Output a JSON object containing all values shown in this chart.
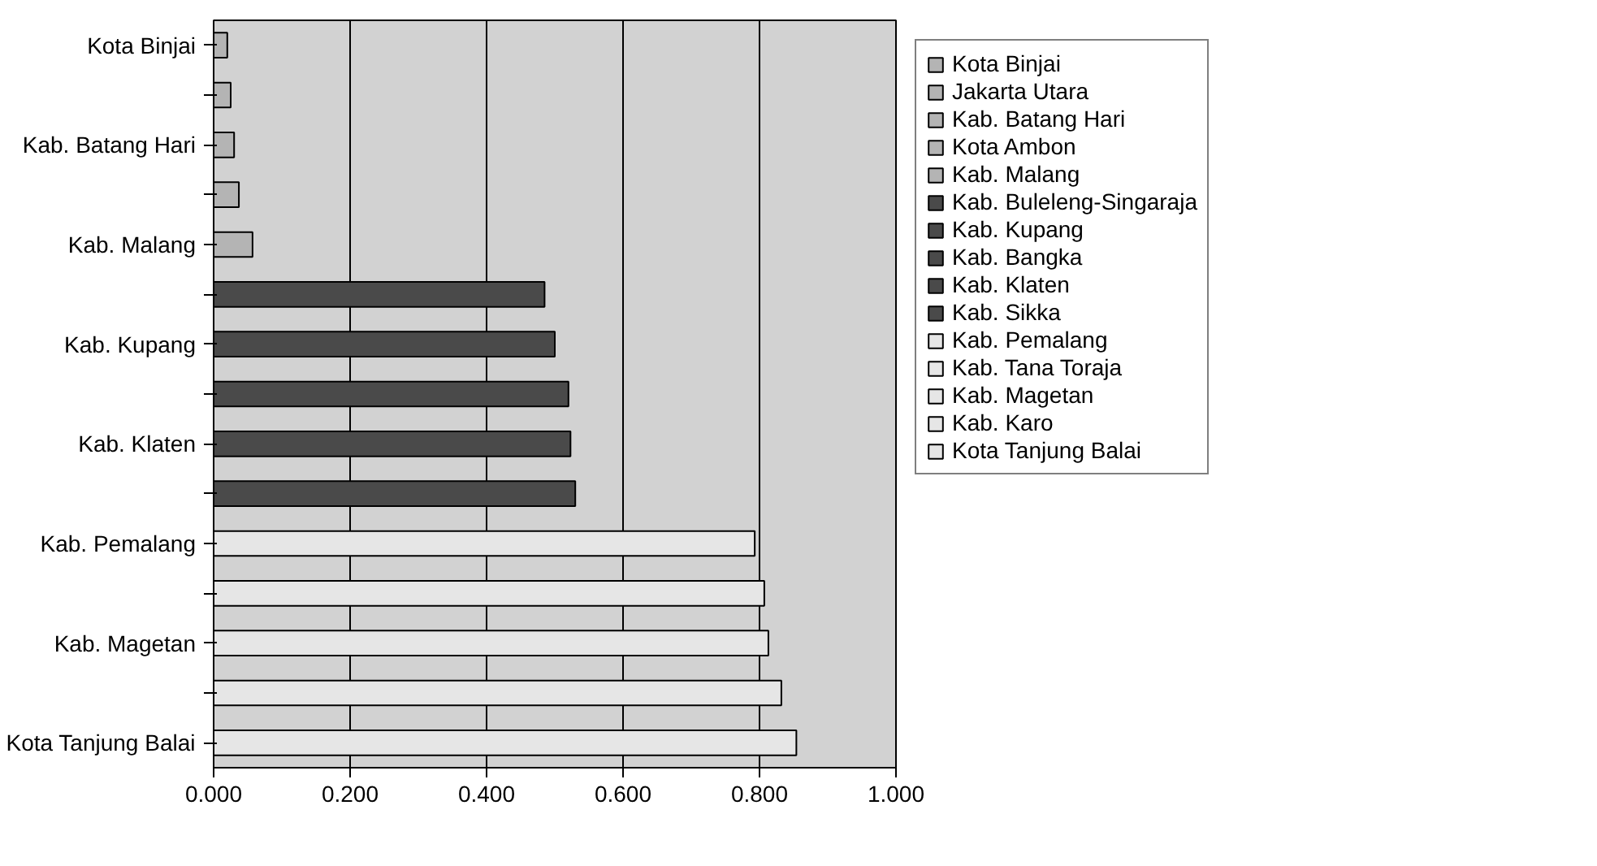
{
  "chart_data": {
    "type": "bar",
    "orientation": "horizontal",
    "stacked": true,
    "categories": [
      "Kota Binjai",
      null,
      "Kab. Batang Hari",
      null,
      "Kab. Malang",
      null,
      "Kab. Kupang",
      null,
      "Kab. Klaten",
      null,
      "Kab. Pemalang",
      null,
      "Kab. Magetan",
      null,
      "Kota Tanjung Balai"
    ],
    "series": [
      {
        "name": "Kota Binjai",
        "color": "#b4b4b4",
        "values": [
          0.02,
          null,
          null,
          null,
          null,
          null,
          null,
          null,
          null,
          null,
          null,
          null,
          null,
          null,
          null
        ]
      },
      {
        "name": "Jakarta Utara",
        "color": "#b4b4b4",
        "values": [
          null,
          0.025,
          null,
          null,
          null,
          null,
          null,
          null,
          null,
          null,
          null,
          null,
          null,
          null,
          null
        ]
      },
      {
        "name": "Kab. Batang Hari",
        "color": "#b4b4b4",
        "values": [
          null,
          null,
          0.03,
          null,
          null,
          null,
          null,
          null,
          null,
          null,
          null,
          null,
          null,
          null,
          null
        ]
      },
      {
        "name": "Kota Ambon",
        "color": "#b4b4b4",
        "values": [
          null,
          null,
          null,
          0.037,
          null,
          null,
          null,
          null,
          null,
          null,
          null,
          null,
          null,
          null,
          null
        ]
      },
      {
        "name": "Kab. Malang",
        "color": "#b4b4b4",
        "values": [
          null,
          null,
          null,
          null,
          0.057,
          null,
          null,
          null,
          null,
          null,
          null,
          null,
          null,
          null,
          null
        ]
      },
      {
        "name": "Kab. Buleleng-Singaraja",
        "color": "#4a4a4a",
        "values": [
          null,
          null,
          null,
          null,
          null,
          0.485,
          null,
          null,
          null,
          null,
          null,
          null,
          null,
          null,
          null
        ]
      },
      {
        "name": "Kab. Kupang",
        "color": "#4a4a4a",
        "values": [
          null,
          null,
          null,
          null,
          null,
          null,
          0.5,
          null,
          null,
          null,
          null,
          null,
          null,
          null,
          null
        ]
      },
      {
        "name": "Kab. Bangka",
        "color": "#4a4a4a",
        "values": [
          null,
          null,
          null,
          null,
          null,
          null,
          null,
          0.52,
          null,
          null,
          null,
          null,
          null,
          null,
          null
        ]
      },
      {
        "name": "Kab. Klaten",
        "color": "#4a4a4a",
        "values": [
          null,
          null,
          null,
          null,
          null,
          null,
          null,
          null,
          0.523,
          null,
          null,
          null,
          null,
          null,
          null
        ]
      },
      {
        "name": "Kab. Sikka",
        "color": "#4a4a4a",
        "values": [
          null,
          null,
          null,
          null,
          null,
          null,
          null,
          null,
          null,
          0.53,
          null,
          null,
          null,
          null,
          null
        ]
      },
      {
        "name": "Kab. Pemalang",
        "color": "#e6e6e6",
        "values": [
          null,
          null,
          null,
          null,
          null,
          null,
          null,
          null,
          null,
          null,
          0.793,
          null,
          null,
          null,
          null
        ]
      },
      {
        "name": "Kab. Tana Toraja",
        "color": "#e6e6e6",
        "values": [
          null,
          null,
          null,
          null,
          null,
          null,
          null,
          null,
          null,
          null,
          null,
          0.807,
          null,
          null,
          null
        ]
      },
      {
        "name": "Kab. Magetan",
        "color": "#e6e6e6",
        "values": [
          null,
          null,
          null,
          null,
          null,
          null,
          null,
          null,
          null,
          null,
          null,
          null,
          0.813,
          null,
          null
        ]
      },
      {
        "name": "Kab. Karo",
        "color": "#e6e6e6",
        "values": [
          null,
          null,
          null,
          null,
          null,
          null,
          null,
          null,
          null,
          null,
          null,
          null,
          null,
          0.832,
          null
        ]
      },
      {
        "name": "Kota Tanjung Balai",
        "color": "#e6e6e6",
        "values": [
          null,
          null,
          null,
          null,
          null,
          null,
          null,
          null,
          null,
          null,
          null,
          null,
          null,
          null,
          0.854
        ]
      }
    ],
    "xlim": [
      0,
      1
    ],
    "xticks": [
      {
        "value": 0,
        "label": "0.000"
      },
      {
        "value": 0.2,
        "label": "0.200"
      },
      {
        "value": 0.4,
        "label": "0.400"
      },
      {
        "value": 0.6,
        "label": "0.600"
      },
      {
        "value": 0.8,
        "label": "0.800"
      },
      {
        "value": 1,
        "label": "1.000"
      }
    ],
    "grid": "x",
    "legend": "right"
  }
}
